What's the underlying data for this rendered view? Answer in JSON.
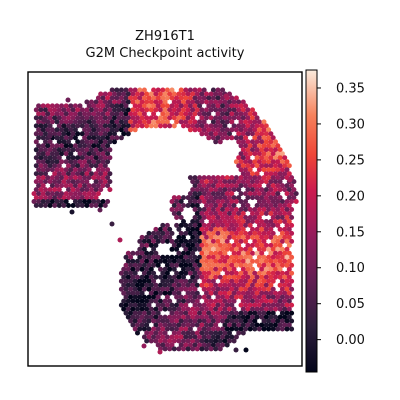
{
  "chart_data": {
    "type": "heatmap",
    "title_line1": "ZH916T1",
    "title_line2": "G2M Checkpoint activity",
    "xlabel": "",
    "ylabel": "",
    "grid": false,
    "colormap": "rocket",
    "colorbar": {
      "range": [
        -0.045,
        0.375
      ],
      "ticks": [
        0.0,
        0.05,
        0.1,
        0.15,
        0.2,
        0.25,
        0.3,
        0.35
      ],
      "tick_labels": [
        "0.00",
        "0.05",
        "0.10",
        "0.15",
        "0.20",
        "0.25",
        "0.30",
        "0.35"
      ]
    }
  }
}
